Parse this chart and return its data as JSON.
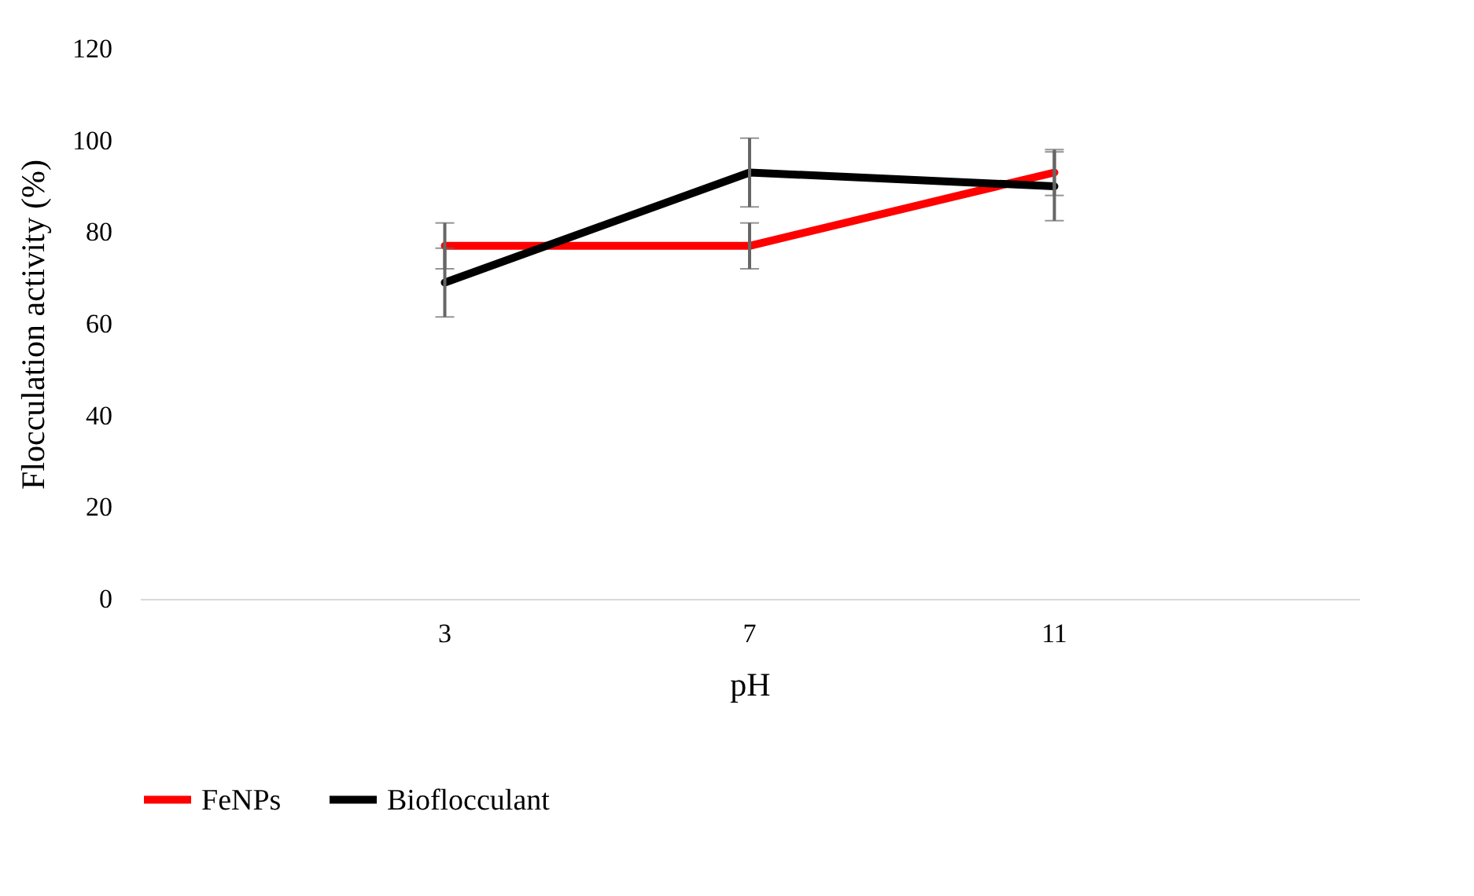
{
  "chart_data": {
    "type": "line",
    "xlabel": "pH",
    "ylabel": "Flocculation activity (%)",
    "categories": [
      "3",
      "7",
      "11"
    ],
    "series": [
      {
        "name": "FeNPs",
        "color": "#ff0000",
        "values": [
          77,
          77,
          93
        ],
        "errors": [
          5,
          5,
          5
        ]
      },
      {
        "name": "Bioflocculant",
        "color": "#000000",
        "values": [
          69,
          93,
          90
        ],
        "errors": [
          7.5,
          7.5,
          7.5
        ]
      }
    ],
    "ylim": [
      0,
      120
    ],
    "yticks": [
      0,
      20,
      40,
      60,
      80,
      100,
      120
    ],
    "grid": false,
    "legend": "bottom",
    "marker": "none",
    "line_style": "solid"
  }
}
